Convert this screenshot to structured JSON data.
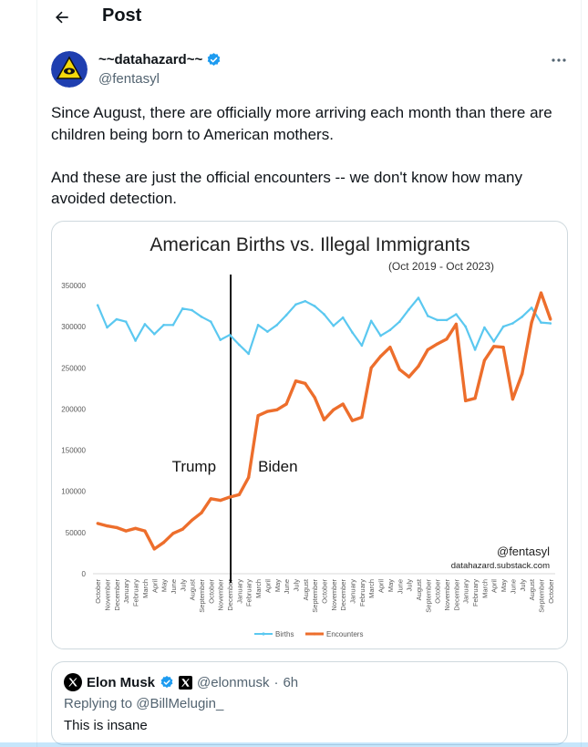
{
  "header": {
    "title": "Post"
  },
  "author": {
    "display_name": "~~datahazard~~",
    "handle": "@fentasyl"
  },
  "tweet": {
    "paragraphs": [
      "Since August, there are officially more arriving each month than there are children being born to American mothers.",
      "And these are just the official encounters -- we don't know how many avoided detection."
    ]
  },
  "quote": {
    "name": "Elon Musk",
    "handle": "@elonmusk",
    "separator": "·",
    "time": "6h",
    "replying_to": "Replying to @BillMelugin_",
    "text": "This is insane"
  },
  "chart_data": {
    "type": "line",
    "title": "American Births vs. Illegal Immigrants",
    "subtitle": "(Oct 2019 - Oct 2023)",
    "watermark_handle": "@fentasyl",
    "watermark_site": "datahazard.substack.com",
    "annotation_left": "Trump",
    "annotation_right": "Biden",
    "ylim": [
      0,
      350000
    ],
    "yticks": [
      0,
      50000,
      100000,
      150000,
      200000,
      250000,
      300000,
      350000
    ],
    "categories": [
      "October",
      "November",
      "December",
      "January",
      "February",
      "March",
      "April",
      "May",
      "June",
      "July",
      "August",
      "September",
      "October",
      "November",
      "December",
      "January",
      "February",
      "March",
      "April",
      "May",
      "June",
      "July",
      "August",
      "September",
      "October",
      "November",
      "December",
      "January",
      "February",
      "March",
      "April",
      "May",
      "June",
      "July",
      "August",
      "September",
      "October",
      "November",
      "December",
      "January",
      "February",
      "March",
      "April",
      "May",
      "June",
      "July",
      "August",
      "September",
      "October"
    ],
    "divider_after_index": 14,
    "colors": {
      "births": "#5bc8f0",
      "encounters": "#ed6e2c",
      "axis": "#d9d9d9",
      "text": "#595959"
    },
    "series": [
      {
        "name": "Births",
        "values": [
          326000,
          299000,
          309000,
          306000,
          283000,
          303000,
          291000,
          302000,
          302000,
          322000,
          320000,
          312000,
          306000,
          284000,
          290000,
          278000,
          267000,
          302000,
          294000,
          302000,
          314000,
          327000,
          331000,
          325000,
          315000,
          301000,
          311000,
          293000,
          277000,
          307000,
          289000,
          296000,
          306000,
          321000,
          335000,
          313000,
          308000,
          308000,
          315000,
          300000,
          272000,
          299000,
          282000,
          300000,
          304000,
          312000,
          323000,
          305000,
          304000
        ]
      },
      {
        "name": "Encounters",
        "values": [
          61000,
          58000,
          56000,
          52000,
          55000,
          52000,
          30000,
          38000,
          49000,
          54000,
          65000,
          74000,
          91000,
          89000,
          93000,
          96000,
          117000,
          192000,
          197000,
          199000,
          206000,
          234000,
          231000,
          214000,
          187000,
          199000,
          206000,
          186000,
          190000,
          250000,
          264000,
          275000,
          248000,
          239000,
          252000,
          272000,
          279000,
          285000,
          303000,
          210000,
          213000,
          259000,
          276000,
          275000,
          212000,
          243000,
          305000,
          341000,
          309000
        ]
      }
    ]
  }
}
